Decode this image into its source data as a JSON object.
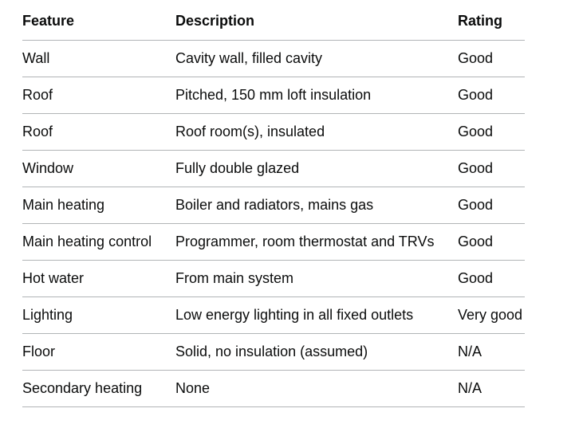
{
  "table": {
    "headers": {
      "feature": "Feature",
      "description": "Description",
      "rating": "Rating"
    },
    "rows": [
      {
        "feature": "Wall",
        "description": "Cavity wall, filled cavity",
        "rating": "Good"
      },
      {
        "feature": "Roof",
        "description": "Pitched, 150 mm loft insulation",
        "rating": "Good"
      },
      {
        "feature": "Roof",
        "description": "Roof room(s), insulated",
        "rating": "Good"
      },
      {
        "feature": "Window",
        "description": "Fully double glazed",
        "rating": "Good"
      },
      {
        "feature": "Main heating",
        "description": "Boiler and radiators, mains gas",
        "rating": "Good"
      },
      {
        "feature": "Main heating control",
        "description": "Programmer, room thermostat and TRVs",
        "rating": "Good"
      },
      {
        "feature": "Hot water",
        "description": "From main system",
        "rating": "Good"
      },
      {
        "feature": "Lighting",
        "description": "Low energy lighting in all fixed outlets",
        "rating": "Very good"
      },
      {
        "feature": "Floor",
        "description": "Solid, no insulation (assumed)",
        "rating": "N/A"
      },
      {
        "feature": "Secondary heating",
        "description": "None",
        "rating": "N/A"
      }
    ]
  },
  "colors": {
    "text": "#0b0c0c",
    "border": "#b1b4b6",
    "background": "#ffffff"
  }
}
